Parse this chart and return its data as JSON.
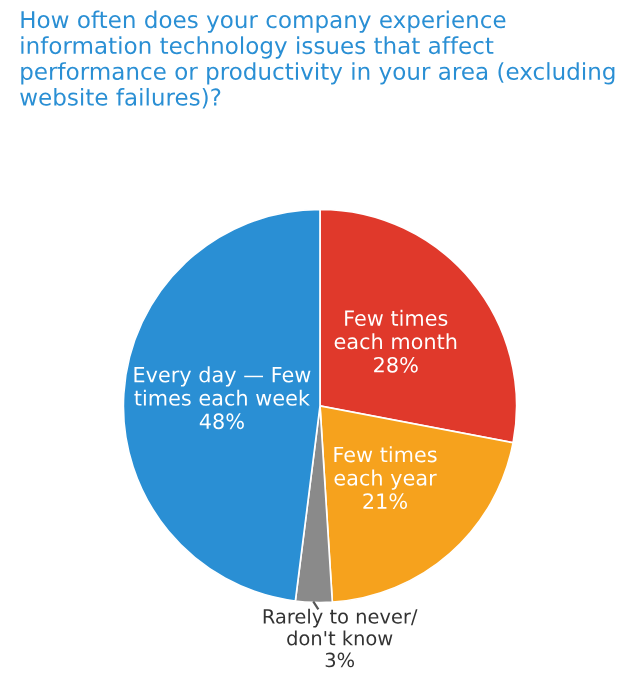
{
  "chart_data": {
    "type": "pie",
    "title": "How often does your company experience information technology issues that affect performance or productivity in your area (excluding website failures)?",
    "categories": [
      "Few times\neach month",
      "Few times\neach year",
      "Rarely to never/\ndon't know",
      "Every day — Few\ntimes each week"
    ],
    "values": [
      28,
      21,
      3,
      48
    ],
    "colors": [
      "#e0392b",
      "#f6a21d",
      "#8a8a8a",
      "#2a8fd4"
    ],
    "value_labels": [
      "28%",
      "21%",
      "3%",
      "48%"
    ]
  }
}
